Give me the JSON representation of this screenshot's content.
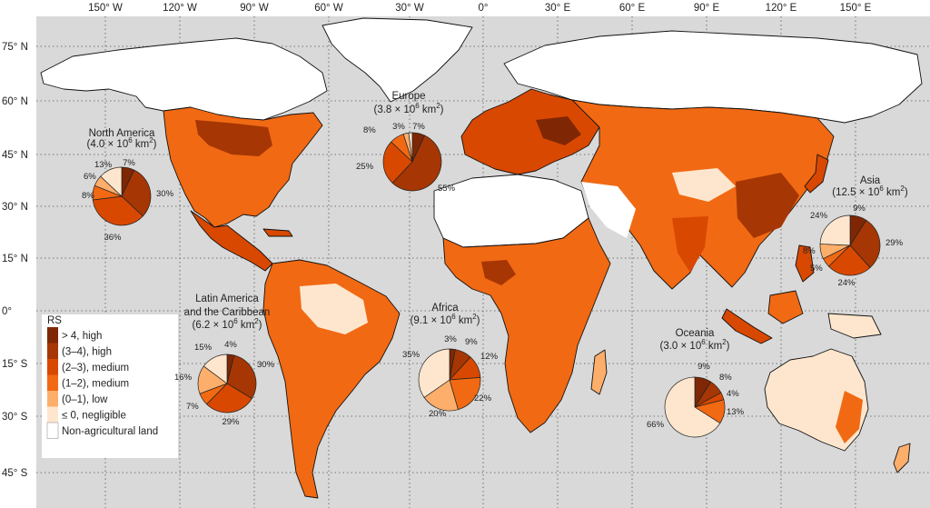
{
  "lon_ticks": [
    "150° W",
    "120° W",
    "90° W",
    "60° W",
    "30° W",
    "0°",
    "30° E",
    "60° E",
    "90° E",
    "120° E",
    "150° E"
  ],
  "lat_ticks": [
    "75° N",
    "60° N",
    "45° N",
    "30° N",
    "15° N",
    "0°",
    "15° S",
    "30° S",
    "45° S"
  ],
  "colors": {
    "ocean": "#d9d9d9",
    "high4": "#7f2704",
    "high34": "#a63603",
    "med23": "#d94801",
    "med12": "#f16913",
    "low01": "#fdae6b",
    "negl": "#fee6ce",
    "nonag": "#ffffff"
  },
  "legend": {
    "title": "RS",
    "items": [
      {
        "label": "> 4, high",
        "color_key": "high4"
      },
      {
        "label": "(3–4), high",
        "color_key": "high34"
      },
      {
        "label": "(2–3), medium",
        "color_key": "med23"
      },
      {
        "label": "(1–2), medium",
        "color_key": "med12"
      },
      {
        "label": "(0–1), low",
        "color_key": "low01"
      },
      {
        "label": "≤ 0, negligible",
        "color_key": "negl"
      },
      {
        "label": "Non-agricultural land",
        "color_key": "nonag"
      }
    ]
  },
  "regions": [
    {
      "id": "north-america",
      "name": "North America",
      "area": "(4.0 × 10",
      "shares": [
        7,
        30,
        36,
        8,
        6,
        13
      ],
      "pct_labels": [
        "7%",
        "30%",
        "36%",
        "8%",
        "6%",
        "13%"
      ]
    },
    {
      "id": "europe",
      "name": "Europe",
      "area": "(3.8 × 10",
      "shares": [
        7,
        55,
        25,
        8,
        3,
        2
      ],
      "pct_labels": [
        "7%",
        "55%",
        "25%",
        "8%",
        "3%"
      ]
    },
    {
      "id": "asia",
      "name": "Asia",
      "area": "(12.5 × 10",
      "shares": [
        9,
        29,
        24,
        5,
        8,
        24
      ],
      "pct_labels": [
        "9%",
        "29%",
        "24%",
        "5%",
        "8%",
        "24%"
      ]
    },
    {
      "id": "latin-america",
      "name_line1": "Latin America",
      "name_line2": "and the Caribbean",
      "area": "(6.2 × 10",
      "shares": [
        4,
        30,
        29,
        7,
        16,
        15
      ],
      "pct_labels": [
        "4%",
        "30%",
        "29%",
        "7%",
        "16%",
        "15%"
      ]
    },
    {
      "id": "africa",
      "name": "Africa",
      "area": "(9.1 × 10",
      "shares": [
        3,
        9,
        12,
        22,
        20,
        35
      ],
      "pct_labels": [
        "3%",
        "9%",
        "12%",
        "22%",
        "20%",
        "35%"
      ]
    },
    {
      "id": "oceania",
      "name": "Oceania",
      "area": "(3.0 × 10",
      "shares": [
        9,
        8,
        4,
        13,
        66
      ],
      "pct_labels": [
        "9%",
        "8%",
        "4%",
        "13%",
        "66%"
      ]
    }
  ],
  "area_unit": {
    "exp": "6",
    "km": " km",
    "sup2": "2",
    "close": ")"
  }
}
